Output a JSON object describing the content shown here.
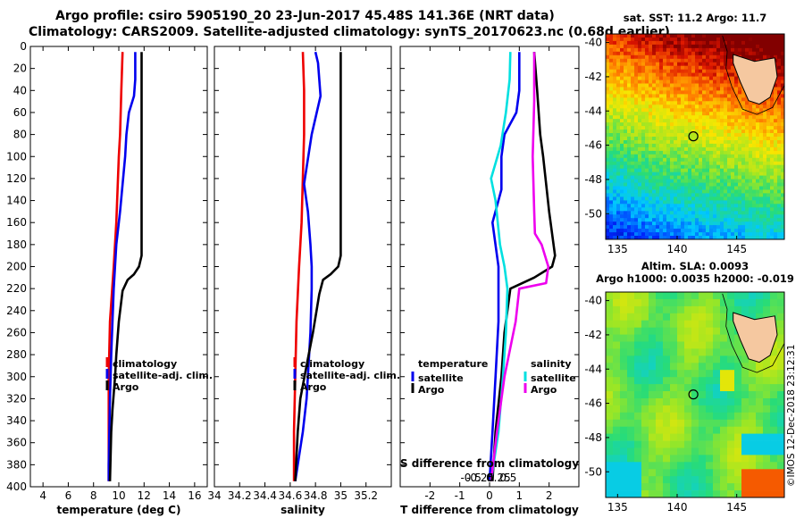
{
  "title": {
    "line1": "Argo profile: csiro 5905190_20 23-Jun-2017 45.48S 141.36E (NRT data)",
    "line2": "Climatology: CARS2009. Satellite-adjusted climatology: synTS_20170623.nc (0.68d earlier)"
  },
  "colors": {
    "argo": "#000000",
    "climatology": "#ee0000",
    "satellite": "#0000ee",
    "sat_salinity": "#00e0e0",
    "clim_salinity": "#ee00ee"
  },
  "chart_data": [
    {
      "type": "line",
      "id": "temperature",
      "xlabel": "temperature (deg C)",
      "ylabel": "depth",
      "xlim": [
        3,
        17
      ],
      "ylim": [
        400,
        0
      ],
      "xticks": [
        "4",
        "6",
        "8",
        "10",
        "12",
        "14",
        "16"
      ],
      "yticks": [
        "0",
        "20",
        "40",
        "60",
        "80",
        "100",
        "120",
        "140",
        "160",
        "180",
        "200",
        "220",
        "240",
        "260",
        "280",
        "300",
        "320",
        "340",
        "360",
        "380",
        "400"
      ],
      "legend": [
        "climatology",
        "satellite-adj. clim.",
        "Argo"
      ],
      "series": [
        {
          "name": "climatology",
          "depth": [
            5,
            40,
            80,
            100,
            130,
            160,
            200,
            250,
            300,
            350,
            395
          ],
          "values": [
            10.3,
            10.2,
            10.1,
            10.0,
            9.9,
            9.8,
            9.6,
            9.3,
            9.2,
            9.2,
            9.2
          ]
        },
        {
          "name": "satellite-adj. clim.",
          "depth": [
            5,
            30,
            45,
            60,
            80,
            100,
            150,
            180,
            220,
            280,
            320,
            380,
            395
          ],
          "values": [
            11.3,
            11.3,
            11.2,
            10.8,
            10.6,
            10.5,
            10.1,
            9.8,
            9.6,
            9.4,
            9.3,
            9.2,
            9.2
          ]
        },
        {
          "name": "Argo",
          "depth": [
            5,
            50,
            100,
            150,
            190,
            200,
            207,
            212,
            222,
            250,
            280,
            300,
            330,
            350,
            395
          ],
          "values": [
            11.8,
            11.8,
            11.8,
            11.8,
            11.8,
            11.6,
            11.2,
            10.7,
            10.3,
            10.0,
            9.8,
            9.7,
            9.5,
            9.4,
            9.3
          ]
        }
      ]
    },
    {
      "type": "line",
      "id": "salinity",
      "xlabel": "salinity",
      "ylabel": "depth",
      "xlim": [
        34.0,
        35.4
      ],
      "ylim": [
        400,
        0
      ],
      "xticks": [
        "34",
        "34.2",
        "34.4",
        "34.6",
        "34.8",
        "35",
        "35.2"
      ],
      "legend": [
        "climatology",
        "satellite-adj. clim.",
        "Argo"
      ],
      "series": [
        {
          "name": "climatology",
          "depth": [
            5,
            40,
            80,
            120,
            160,
            200,
            250,
            300,
            350,
            395
          ],
          "values": [
            34.7,
            34.71,
            34.71,
            34.7,
            34.69,
            34.67,
            34.65,
            34.64,
            34.63,
            34.63
          ]
        },
        {
          "name": "satellite-adj. clim.",
          "depth": [
            5,
            15,
            30,
            45,
            80,
            110,
            125,
            150,
            180,
            200,
            220,
            260,
            320,
            350,
            380,
            395
          ],
          "values": [
            34.8,
            34.82,
            34.83,
            34.84,
            34.77,
            34.73,
            34.71,
            34.74,
            34.76,
            34.77,
            34.77,
            34.76,
            34.73,
            34.7,
            34.66,
            34.64
          ]
        },
        {
          "name": "Argo",
          "depth": [
            5,
            100,
            150,
            190,
            200,
            207,
            212,
            225,
            260,
            290,
            320,
            350,
            395
          ],
          "values": [
            35.0,
            35.0,
            35.0,
            35.0,
            34.98,
            34.92,
            34.86,
            34.83,
            34.78,
            34.73,
            34.68,
            34.66,
            34.64
          ]
        }
      ]
    },
    {
      "type": "line",
      "id": "difference",
      "xlabel": "T difference from climatology",
      "x2label": "S difference from climatology",
      "ylabel": "depth",
      "xlim": [
        -3,
        3
      ],
      "ylim": [
        400,
        0
      ],
      "xticks": [
        "-2",
        "-1",
        "0",
        "1",
        "2"
      ],
      "x2ticks": [
        "-0.5",
        "-0.25",
        "0",
        "0.25",
        "0.5"
      ],
      "legend_temperature_title": "temperature",
      "legend_temperature": [
        "satellite",
        "Argo"
      ],
      "legend_salinity_title": "salinity",
      "legend_salinity": [
        "satellite",
        "Argo"
      ],
      "series": [
        {
          "name": "T satellite",
          "depth": [
            5,
            40,
            60,
            80,
            100,
            130,
            160,
            200,
            250,
            300,
            350,
            395
          ],
          "values": [
            1.0,
            1.0,
            0.9,
            0.5,
            0.4,
            0.4,
            0.1,
            0.3,
            0.3,
            0.2,
            0.1,
            0.0
          ]
        },
        {
          "name": "T Argo",
          "depth": [
            5,
            40,
            80,
            100,
            150,
            190,
            200,
            210,
            220,
            260,
            300,
            350,
            395
          ],
          "values": [
            1.5,
            1.6,
            1.7,
            1.8,
            2.0,
            2.2,
            2.1,
            1.5,
            0.7,
            0.5,
            0.4,
            0.2,
            0.1
          ]
        },
        {
          "name": "S satellite",
          "depth": [
            5,
            30,
            60,
            90,
            120,
            140,
            180,
            200,
            220,
            260,
            300,
            350,
            395
          ],
          "values": [
            0.56,
            0.54,
            0.44,
            0.3,
            0.04,
            0.16,
            0.28,
            0.4,
            0.48,
            0.44,
            0.36,
            0.24,
            0.04
          ]
        },
        {
          "name": "S Argo",
          "depth": [
            5,
            50,
            100,
            150,
            170,
            180,
            200,
            215,
            220,
            250,
            300,
            350,
            395
          ],
          "values": [
            1.2,
            1.2,
            1.16,
            1.2,
            1.22,
            1.4,
            1.58,
            1.52,
            0.8,
            0.7,
            0.4,
            0.2,
            0.04
          ]
        }
      ]
    },
    {
      "type": "heatmap",
      "id": "sst_map",
      "title": "sat. SST: 11.2 Argo: 11.7",
      "xlim": [
        134,
        149
      ],
      "ylim": [
        -51.5,
        -39.5
      ],
      "xticks": [
        "135",
        "140",
        "145"
      ],
      "yticks": [
        "-40",
        "-42",
        "-44",
        "-46",
        "-48",
        "-50"
      ],
      "argo_position": {
        "lon": 141.36,
        "lat": -45.48
      }
    },
    {
      "type": "heatmap",
      "id": "sla_map",
      "title1": "Altim. SLA: 0.0093",
      "title2": "Argo h1000: 0.0035 h2000: -0.019",
      "xlim": [
        134,
        149
      ],
      "ylim": [
        -51.5,
        -39.5
      ],
      "xticks": [
        "135",
        "140",
        "145"
      ],
      "yticks": [
        "-40",
        "-42",
        "-44",
        "-46",
        "-48",
        "-50"
      ],
      "argo_position": {
        "lon": 141.36,
        "lat": -45.48
      }
    }
  ],
  "credit": "©IMOS 12-Dec-2018 23:12:31"
}
